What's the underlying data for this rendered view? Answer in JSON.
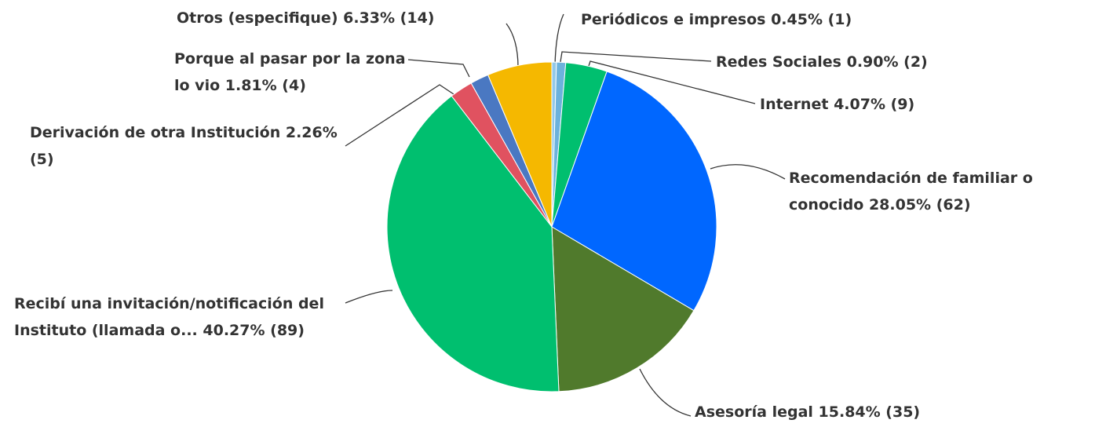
{
  "chart_data": {
    "type": "pie",
    "categories": [
      "Periódicos e impresos",
      "Redes Sociales",
      "Internet",
      "Recomendación de familiar o conocido",
      "Asesoría legal",
      "Recibí una invitación/notificación del Instituto (llamada o...",
      "Derivación de otra Institución",
      "Porque al pasar por la zona lo vio",
      "Otros (especifique)"
    ],
    "values": [
      0.45,
      0.9,
      4.07,
      28.05,
      15.84,
      40.27,
      2.26,
      1.81,
      6.33
    ],
    "value_labels": [
      "0.45% (1)",
      "0.90% (2)",
      "4.07% (9)",
      "28.05% (62)",
      "15.84% (35)",
      "40.27% (89)",
      "2.26% (5)",
      "1.81% (4)",
      "6.33% (14)"
    ],
    "colors": [
      "#93c9e8",
      "#6cb2dc",
      "#00bf6f",
      "#0067ff",
      "#507a2c",
      "#00bf6f",
      "#e05260",
      "#4a78c2",
      "#f5b800"
    ]
  }
}
